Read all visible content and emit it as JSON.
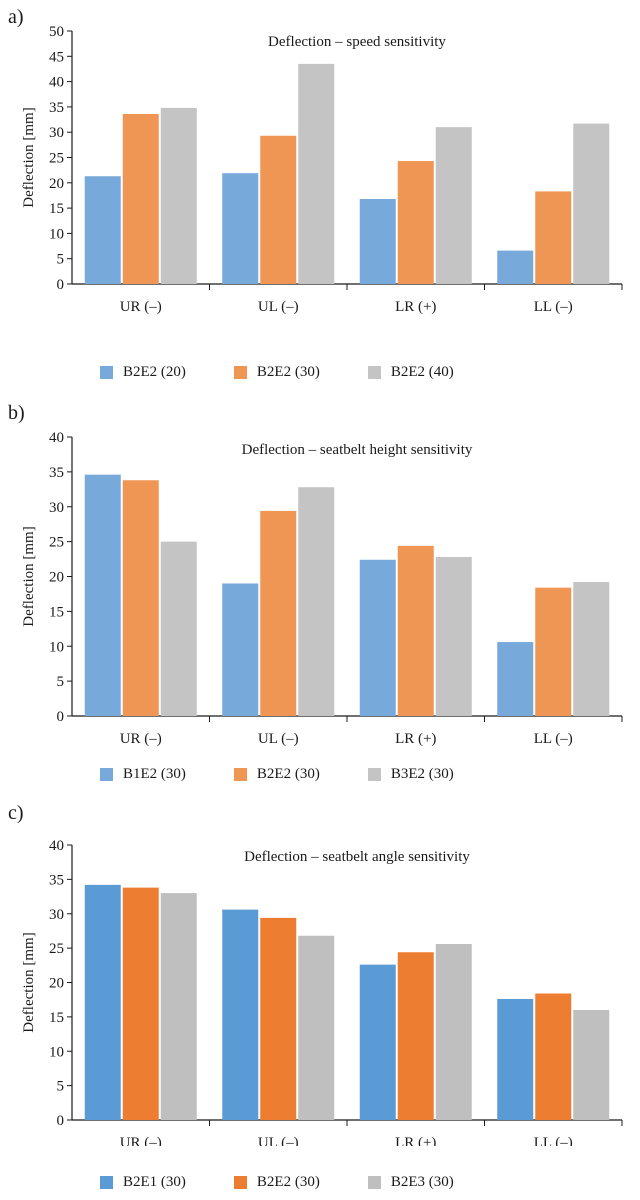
{
  "chart_data": [
    {
      "type": "bar",
      "panel_label": "a)",
      "title": "Deflection – speed sensitivity",
      "ylabel": "Deflection [mm]",
      "xlabel": "",
      "categories": [
        "UR (–)",
        "UL (–)",
        "LR (+)",
        "LL (–)"
      ],
      "ylim": [
        0,
        50
      ],
      "yticks": [
        0,
        5,
        10,
        15,
        20,
        25,
        30,
        35,
        40,
        45,
        50
      ],
      "series": [
        {
          "name": "B2E2 (20)",
          "color": "#77a9db",
          "values": [
            21.3,
            21.9,
            16.8,
            6.6
          ]
        },
        {
          "name": "B2E2 (30)",
          "color": "#ef9655",
          "values": [
            33.6,
            29.3,
            24.3,
            18.3
          ]
        },
        {
          "name": "B2E2 (40)",
          "color": "#c4c4c4",
          "values": [
            34.8,
            43.5,
            31.0,
            31.7
          ]
        }
      ],
      "grid": false,
      "legend_position": "bottom"
    },
    {
      "type": "bar",
      "panel_label": "b)",
      "title": "Deflection – seatbelt height sensitivity",
      "ylabel": "Deflection [mm]",
      "xlabel": "",
      "categories": [
        "UR (–)",
        "UL (–)",
        "LR (+)",
        "LL (–)"
      ],
      "ylim": [
        0,
        40
      ],
      "yticks": [
        0,
        5,
        10,
        15,
        20,
        25,
        30,
        35,
        40
      ],
      "series": [
        {
          "name": "B1E2 (30)",
          "color": "#77a9db",
          "values": [
            34.6,
            19.0,
            22.4,
            10.6
          ]
        },
        {
          "name": "B2E2 (30)",
          "color": "#ef9655",
          "values": [
            33.8,
            29.4,
            24.4,
            18.4
          ]
        },
        {
          "name": "B3E2 (30)",
          "color": "#c4c4c4",
          "values": [
            25.0,
            32.8,
            22.8,
            19.2
          ]
        }
      ],
      "grid": false,
      "legend_position": "bottom"
    },
    {
      "type": "bar",
      "panel_label": "c)",
      "title": "Deflection – seatbelt angle sensitivity",
      "ylabel": "Deflection [mm]",
      "xlabel": "",
      "categories": [
        "UR (–)",
        "UL (–)",
        "LR (+)",
        "LL (–)"
      ],
      "ylim": [
        0,
        40
      ],
      "yticks": [
        0,
        5,
        10,
        15,
        20,
        25,
        30,
        35,
        40
      ],
      "series": [
        {
          "name": "B2E1 (30)",
          "color": "#5b9bd5",
          "values": [
            34.2,
            30.6,
            22.6,
            17.6
          ]
        },
        {
          "name": "B2E2 (30)",
          "color": "#ed7d31",
          "values": [
            33.8,
            29.4,
            24.4,
            18.4
          ]
        },
        {
          "name": "B2E3 (30)",
          "color": "#bfbfbf",
          "values": [
            33.0,
            26.8,
            25.6,
            16.0
          ]
        }
      ],
      "grid": false,
      "legend_position": "bottom"
    }
  ]
}
